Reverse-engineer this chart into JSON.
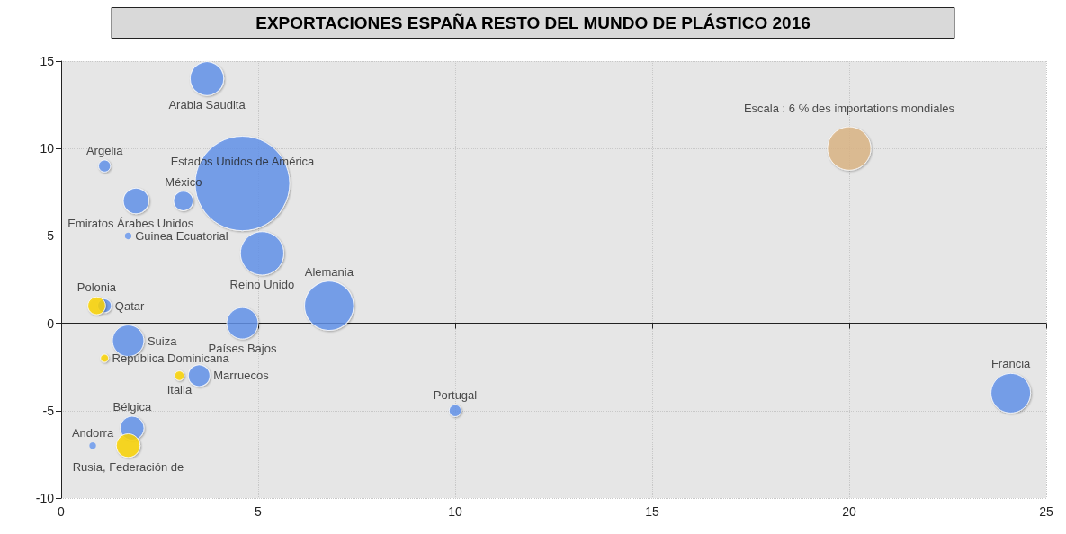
{
  "chart_data": {
    "type": "bubble",
    "title": "EXPORTACIONES ESPAÑA RESTO DEL MUNDO DE PLÁSTICO 2016",
    "series": [
      {
        "color": "#6495ed",
        "x": [
          3.7,
          4.6,
          1.9,
          3.1,
          1.1,
          1.7,
          5.1,
          6.8,
          4.6,
          1.1,
          1.7,
          3.5,
          1.8,
          0.8,
          10,
          24.1
        ],
        "values": [
          14,
          8,
          7,
          7,
          9,
          5,
          4,
          1,
          0,
          1,
          -1,
          -3,
          -6,
          -7,
          -5,
          -4
        ],
        "sizes": [
          0.126,
          1,
          0.073,
          0.042,
          0.016,
          0.005,
          0.21,
          0.27,
          0.11,
          0.021,
          0.11,
          0.052,
          0.063,
          0.005,
          0.016,
          0.175
        ]
      },
      {
        "color": "#ffd700",
        "x": [
          0.9,
          1.1,
          3,
          1.7
        ],
        "values": [
          1,
          -2,
          -3,
          -7
        ],
        "sizes": [
          0.035,
          0.007,
          0.01,
          0.063
        ]
      },
      {
        "name": "Escala : 6 % des importations mondiales",
        "color": "#deb887",
        "x": [
          20
        ],
        "values": [
          10
        ],
        "sizes": [
          0.21
        ]
      }
    ],
    "annotations": [
      {
        "text": "Arabia Saudita",
        "x": 3.7,
        "y": 14
      },
      {
        "text": "Estados Unidos de América",
        "x": 4.6,
        "y": 8
      },
      {
        "text": "Emiratos Árabes Unidos",
        "x": 1.9,
        "y": 7
      },
      {
        "text": "México",
        "x": 3.1,
        "y": 7
      },
      {
        "text": "Argelia",
        "x": 1.1,
        "y": 9
      },
      {
        "text": "Guinea Ecuatorial",
        "x": 1.7,
        "y": 5
      },
      {
        "text": "Reino Unido",
        "x": 5.1,
        "y": 4
      },
      {
        "text": "Alemania",
        "x": 6.8,
        "y": 1
      },
      {
        "text": "Países Bajos",
        "x": 4.6,
        "y": 0
      },
      {
        "text": "Qatar",
        "x": 1.1,
        "y": 1
      },
      {
        "text": "Suiza",
        "x": 1.7,
        "y": -1
      },
      {
        "text": "Marruecos",
        "x": 3.5,
        "y": -3
      },
      {
        "text": "Bélgica",
        "x": 1.8,
        "y": -6
      },
      {
        "text": "Andorra",
        "x": 0.8,
        "y": -7
      },
      {
        "text": "Portugal",
        "x": 10,
        "y": -5
      },
      {
        "text": "Francia",
        "x": 24.1,
        "y": -4
      },
      {
        "text": "Polonia",
        "x": 0.9,
        "y": 1
      },
      {
        "text": "República Dominicana",
        "x": 1.1,
        "y": -2
      },
      {
        "text": "Italia",
        "x": 3,
        "y": -3
      },
      {
        "text": "Rusia, Federación de",
        "x": 1.7,
        "y": -7
      }
    ],
    "xlim": [
      0,
      25
    ],
    "xticks": [
      0,
      5,
      10,
      15,
      20,
      25
    ],
    "ylim": [
      -10,
      15
    ],
    "yticks": [
      -10,
      -5,
      0,
      5,
      10,
      15
    ],
    "grid": true
  }
}
